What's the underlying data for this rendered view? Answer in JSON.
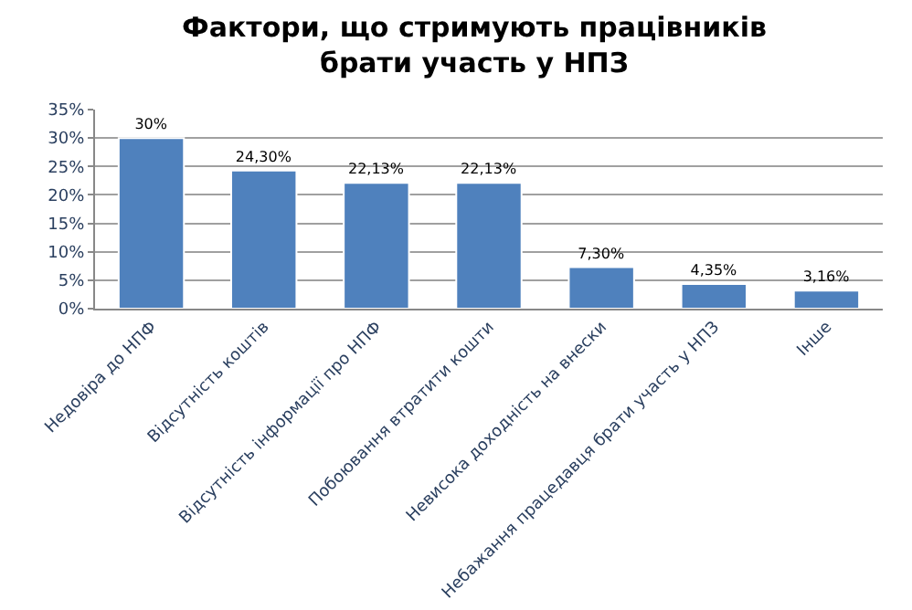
{
  "chart_data": {
    "type": "bar",
    "title": "Фактори, що стримують працівників брати участь у НПЗ",
    "categories": [
      "Недовіра до НПФ",
      "Відсутність коштів",
      "Відсутність інформації про НПФ",
      "Побоювання втратити кошти",
      "Невисока доходність на внески",
      "Небажання працедавця брати участь у НПЗ",
      "Інше"
    ],
    "values": [
      30,
      24.3,
      22.13,
      22.13,
      7.3,
      4.35,
      3.16
    ],
    "value_labels": [
      "30%",
      "24,30%",
      "22,13%",
      "22,13%",
      "7,30%",
      "4,35%",
      "3,16%"
    ],
    "color": "#4f81bd",
    "ylim": [
      0,
      35
    ],
    "yticks": [
      {
        "value": 0,
        "label": "0%"
      },
      {
        "value": 5,
        "label": "5%"
      },
      {
        "value": 10,
        "label": "10%"
      },
      {
        "value": 15,
        "label": "15%"
      },
      {
        "value": 20,
        "label": "20%"
      },
      {
        "value": 25,
        "label": "25%"
      },
      {
        "value": 30,
        "label": "30%"
      },
      {
        "value": 35,
        "label": "35%"
      }
    ],
    "grid": "y",
    "legend": false
  }
}
